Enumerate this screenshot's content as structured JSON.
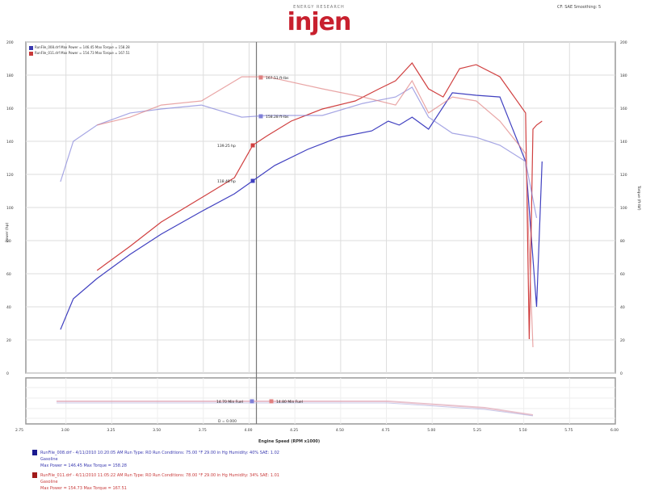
{
  "header": {
    "logo_tagline": "ENERGY RESEARCH",
    "logo_text": "injen",
    "correction": "CF: SAE  Smoothing: 5"
  },
  "legend": [
    {
      "text": "RunFile_008.drf  Max Power = 146.45   Max Torque = 158.28",
      "color": "#3a3ab0"
    },
    {
      "text": "RunFile_011.drf  Max Power = 154.73   Max Torque = 167.51",
      "color": "#c83a3a"
    }
  ],
  "footer": [
    {
      "line1": "RunFile_008.drf - 4/11/2010 10:20:05 AM  Run Type: RO  Run Conditions: 75.00 °F 29.00 in Hg  Humidity: 40%  SAE: 1.02",
      "line2": "Gasoline",
      "line3": "Max Power = 146.45  Max Torque = 158.28",
      "color": "#3a3ab0"
    },
    {
      "line1": "RunFile_011.drf - 4/11/2010 11:05:22 AM  Run Type: RO  Run Conditions: 78.00 °F 29.00 in Hg  Humidity: 34%  SAE: 1.01",
      "line2": "Gasoline",
      "line3": "Max Power = 154.73  Max Torque = 167.51",
      "color": "#c83a3a"
    }
  ],
  "annotations": {
    "red_torque": "167.51 ft-lbs",
    "blue_torque": "158.28 ft-lbs",
    "red_power": "139.25 hp",
    "blue_power": "118.48 hp",
    "blue_min": "14.70 Min Fuel",
    "red_min": "14.80 Min Fuel",
    "delta": "D = 0.000"
  },
  "chart_data": {
    "type": "line",
    "title": "",
    "xlabel": "Engine Speed (RPM x1000)",
    "ylabel": "Power (hp)",
    "y2label": "Torque (ft-lbf)",
    "xlim": [
      2.75,
      6.0
    ],
    "ylim": [
      0,
      200
    ],
    "x_ticks": [
      "2.75",
      "3.00",
      "3.25",
      "3.50",
      "3.75",
      "4.00",
      "4.25",
      "4.50",
      "4.75",
      "5.00",
      "5.25",
      "5.50",
      "5.75",
      "6.00"
    ],
    "y_ticks": [
      "0",
      "20",
      "40",
      "60",
      "80",
      "100",
      "120",
      "140",
      "160",
      "180",
      "200"
    ],
    "grid": true,
    "cursor_rpm": 4.04,
    "series": [
      {
        "name": "RunFile_008 Power",
        "color": "#4040c0",
        "opacity": 1,
        "x": [
          2.97,
          3.04,
          3.17,
          3.35,
          3.52,
          3.74,
          3.92,
          4.02,
          4.14,
          4.32,
          4.49,
          4.67,
          4.76,
          4.82,
          4.89,
          4.98,
          5.11,
          5.24,
          5.37,
          5.51,
          5.57,
          5.6
        ],
        "y": [
          26.3,
          44.9,
          57.1,
          71.7,
          83.9,
          97.6,
          108.3,
          116.1,
          125.4,
          135.1,
          142.4,
          146.3,
          152.2,
          149.8,
          154.6,
          147.3,
          169.3,
          167.8,
          166.8,
          127.8,
          40.0,
          127.8
        ]
      },
      {
        "name": "RunFile_011 Power",
        "color": "#d04040",
        "opacity": 1,
        "x": [
          3.17,
          3.35,
          3.52,
          3.74,
          3.92,
          4.02,
          4.1,
          4.23,
          4.4,
          4.58,
          4.71,
          4.8,
          4.89,
          4.98,
          5.06,
          5.15,
          5.24,
          5.37,
          5.51,
          5.53,
          5.55,
          5.57,
          5.6
        ],
        "y": [
          62.0,
          76.6,
          91.2,
          105.9,
          118.0,
          137.6,
          143.4,
          152.2,
          159.5,
          164.4,
          171.7,
          176.6,
          187.3,
          171.7,
          166.8,
          183.9,
          186.3,
          179.0,
          157.1,
          20.5,
          147.3,
          149.8,
          152.2
        ]
      },
      {
        "name": "RunFile_008 Torque",
        "color": "#8080d8",
        "opacity": 0.7,
        "x": [
          2.97,
          3.04,
          3.17,
          3.35,
          3.52,
          3.74,
          3.96,
          4.1,
          4.4,
          4.62,
          4.8,
          4.89,
          4.98,
          5.11,
          5.24,
          5.37,
          5.51,
          5.57
        ],
        "y": [
          115.6,
          140.0,
          149.8,
          157.1,
          159.5,
          161.9,
          154.6,
          155.6,
          155.6,
          162.9,
          166.8,
          172.7,
          154.6,
          144.9,
          142.4,
          137.6,
          127.8,
          93.7
        ]
      },
      {
        "name": "RunFile_011 Torque",
        "color": "#e08080",
        "opacity": 0.7,
        "x": [
          3.17,
          3.35,
          3.52,
          3.74,
          3.96,
          4.1,
          4.4,
          4.62,
          4.8,
          4.89,
          4.98,
          5.11,
          5.24,
          5.37,
          5.51,
          5.55
        ],
        "y": [
          149.8,
          154.6,
          161.9,
          164.4,
          179.0,
          179.0,
          171.7,
          166.8,
          161.9,
          176.6,
          157.1,
          166.8,
          164.4,
          152.2,
          132.7,
          15.6
        ]
      }
    ]
  }
}
